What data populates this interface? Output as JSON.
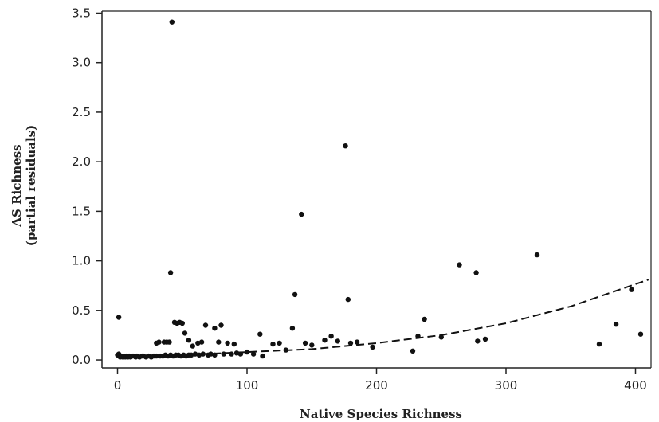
{
  "chart_data": {
    "type": "scatter",
    "title": "",
    "xlabel": "Native Species Richness",
    "ylabel_line1": "AS Richness",
    "ylabel_line2": "(partial residuals)",
    "xlim": [
      -12,
      412
    ],
    "ylim": [
      -0.08,
      3.52
    ],
    "xticks": [
      0,
      100,
      200,
      300,
      400
    ],
    "xtick_labels": [
      "0",
      "100",
      "200",
      "300",
      "400"
    ],
    "yticks": [
      0.0,
      0.5,
      1.0,
      1.5,
      2.0,
      2.5,
      3.0,
      3.5
    ],
    "ytick_labels": [
      "0.0",
      "0.5",
      "1.0",
      "1.5",
      "2.0",
      "2.5",
      "3.0",
      "3.5"
    ],
    "grid": false,
    "legend": "none",
    "colors": {
      "points": "#111111",
      "fit_line": "#111111",
      "axes": "#222222"
    },
    "series": [
      {
        "kind": "points",
        "x": [
          42,
          176,
          142,
          324,
          264,
          277,
          137,
          41,
          178,
          397,
          385,
          1,
          237,
          372,
          404,
          284,
          278,
          250,
          228,
          232,
          44,
          46,
          48,
          50,
          68,
          80,
          75,
          52,
          55,
          110,
          135,
          36,
          38,
          40,
          32,
          30,
          58,
          62,
          65,
          78,
          85,
          90,
          95,
          120,
          125,
          130,
          145,
          150,
          160,
          165,
          170,
          180,
          185,
          197,
          100,
          105,
          112,
          0,
          1,
          2,
          3,
          4,
          5,
          6,
          7,
          8,
          9,
          10,
          12,
          14,
          15,
          17,
          19,
          20,
          22,
          24,
          26,
          28,
          30,
          33,
          35,
          37,
          39,
          41,
          43,
          45,
          47,
          49,
          51,
          53,
          55,
          57,
          60,
          63,
          66,
          70,
          72,
          75,
          82,
          88,
          92
        ],
        "y": [
          3.41,
          2.16,
          1.47,
          1.06,
          0.96,
          0.88,
          0.66,
          0.88,
          0.61,
          0.71,
          0.36,
          0.43,
          0.41,
          0.16,
          0.26,
          0.21,
          0.19,
          0.23,
          0.09,
          0.24,
          0.38,
          0.37,
          0.38,
          0.37,
          0.35,
          0.35,
          0.32,
          0.27,
          0.2,
          0.26,
          0.32,
          0.18,
          0.18,
          0.18,
          0.18,
          0.17,
          0.14,
          0.17,
          0.18,
          0.18,
          0.17,
          0.16,
          0.06,
          0.16,
          0.17,
          0.1,
          0.17,
          0.15,
          0.2,
          0.24,
          0.19,
          0.17,
          0.18,
          0.13,
          0.08,
          0.06,
          0.04,
          0.05,
          0.06,
          0.03,
          0.04,
          0.03,
          0.04,
          0.03,
          0.04,
          0.03,
          0.04,
          0.03,
          0.04,
          0.03,
          0.04,
          0.03,
          0.04,
          0.04,
          0.03,
          0.04,
          0.03,
          0.04,
          0.04,
          0.04,
          0.04,
          0.05,
          0.04,
          0.05,
          0.04,
          0.05,
          0.05,
          0.04,
          0.05,
          0.04,
          0.05,
          0.05,
          0.06,
          0.05,
          0.06,
          0.05,
          0.06,
          0.05,
          0.06,
          0.06,
          0.07
        ]
      },
      {
        "kind": "fit",
        "style": "dashed",
        "x": [
          0,
          50,
          100,
          150,
          200,
          250,
          300,
          350,
          410
        ],
        "y": [
          0.03,
          0.05,
          0.08,
          0.11,
          0.17,
          0.25,
          0.37,
          0.54,
          0.81
        ]
      }
    ]
  }
}
